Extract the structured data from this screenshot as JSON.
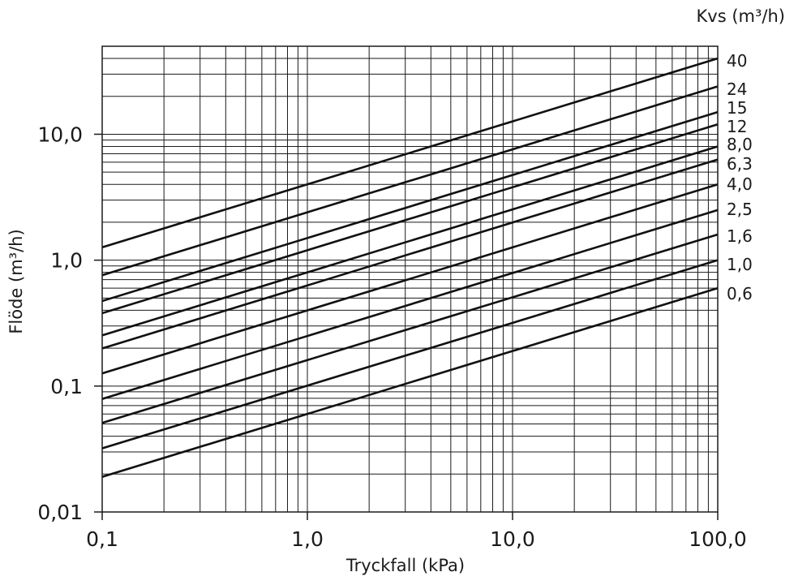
{
  "chart_data": {
    "type": "line",
    "xlabel": "Tryckfall (kPa)",
    "ylabel": "Flöde (m³/h)",
    "legend_title": "Kvs (m³/h)",
    "x_scale": "log",
    "y_scale": "log",
    "xlim": [
      0.1,
      100
    ],
    "ylim": [
      0.01,
      50
    ],
    "grid": true,
    "legend_placement": "right",
    "x_ticks": [
      {
        "value": 0.1,
        "label": "0,1"
      },
      {
        "value": 1,
        "label": "1,0"
      },
      {
        "value": 10,
        "label": "10,0"
      },
      {
        "value": 100,
        "label": "100,0"
      }
    ],
    "y_ticks": [
      {
        "value": 0.01,
        "label": "0,01"
      },
      {
        "value": 0.1,
        "label": "0,1"
      },
      {
        "value": 1,
        "label": "1,0"
      },
      {
        "value": 10,
        "label": "10,0"
      }
    ],
    "series": [
      {
        "name": "40",
        "x": [
          0.1,
          100
        ],
        "y": [
          1.265,
          40
        ]
      },
      {
        "name": "24",
        "x": [
          0.1,
          100
        ],
        "y": [
          0.759,
          24
        ]
      },
      {
        "name": "15",
        "x": [
          0.1,
          100
        ],
        "y": [
          0.474,
          15
        ]
      },
      {
        "name": "12",
        "x": [
          0.1,
          100
        ],
        "y": [
          0.379,
          12
        ]
      },
      {
        "name": "8,0",
        "x": [
          0.1,
          100
        ],
        "y": [
          0.253,
          8
        ]
      },
      {
        "name": "6,3",
        "x": [
          0.1,
          100
        ],
        "y": [
          0.199,
          6.3
        ]
      },
      {
        "name": "4,0",
        "x": [
          0.1,
          100
        ],
        "y": [
          0.126,
          4
        ]
      },
      {
        "name": "2,5",
        "x": [
          0.1,
          100
        ],
        "y": [
          0.079,
          2.5
        ]
      },
      {
        "name": "1,6",
        "x": [
          0.1,
          100
        ],
        "y": [
          0.051,
          1.6
        ]
      },
      {
        "name": "1,0",
        "x": [
          0.1,
          100
        ],
        "y": [
          0.032,
          1.0
        ]
      },
      {
        "name": "0,6",
        "x": [
          0.1,
          100
        ],
        "y": [
          0.019,
          0.6
        ]
      }
    ]
  }
}
